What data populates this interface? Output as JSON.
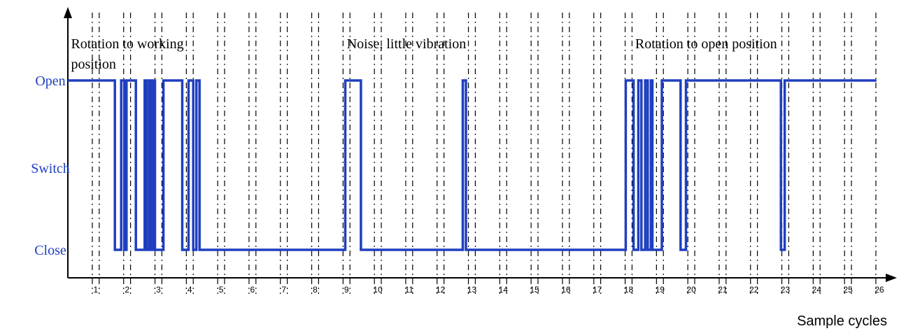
{
  "chart_data": {
    "type": "line",
    "xlabel": "Sample cycles",
    "ylabel": "",
    "y_states": [
      "Close",
      "Switch",
      "Open"
    ],
    "x_ticks": [
      "1",
      "2",
      "3",
      "4",
      "5",
      "6",
      "7",
      "8",
      "9",
      "10",
      "11",
      "12",
      "13",
      "14",
      "15",
      "16",
      "17",
      "18",
      "19",
      "20",
      "21",
      "22",
      "23",
      "24",
      "25",
      "26"
    ],
    "xlim": [
      0,
      26
    ],
    "grid": true,
    "annotations": [
      {
        "lines": [
          "Rotation to working",
          "position"
        ],
        "x": 0.1
      },
      {
        "lines": [
          "Noise, little vibration"
        ],
        "x": 8.9
      },
      {
        "lines": [
          "Rotation to open position"
        ],
        "x": 18.1
      }
    ],
    "series": [
      {
        "points": [
          [
            0,
            "Open"
          ],
          [
            1.5,
            "Open"
          ],
          [
            1.5,
            "Close"
          ],
          [
            1.7,
            "Close"
          ],
          [
            1.7,
            "Open"
          ],
          [
            1.8,
            "Open"
          ],
          [
            1.8,
            "Close"
          ],
          [
            1.87,
            "Close"
          ],
          [
            1.87,
            "Open"
          ],
          [
            2.17,
            "Open"
          ],
          [
            2.17,
            "Close"
          ],
          [
            2.45,
            "Close"
          ],
          [
            2.45,
            "Open"
          ],
          [
            2.52,
            "Open"
          ],
          [
            2.52,
            "Close"
          ],
          [
            2.6,
            "Close"
          ],
          [
            2.6,
            "Open"
          ],
          [
            2.65,
            "Open"
          ],
          [
            2.65,
            "Close"
          ],
          [
            2.72,
            "Close"
          ],
          [
            2.72,
            "Open"
          ],
          [
            2.78,
            "Open"
          ],
          [
            2.78,
            "Close"
          ],
          [
            3.05,
            "Close"
          ],
          [
            3.05,
            "Open"
          ],
          [
            3.65,
            "Open"
          ],
          [
            3.65,
            "Close"
          ],
          [
            3.85,
            "Close"
          ],
          [
            3.85,
            "Open"
          ],
          [
            4.0,
            "Open"
          ],
          [
            4.0,
            "Close"
          ],
          [
            4.1,
            "Close"
          ],
          [
            4.1,
            "Open"
          ],
          [
            4.2,
            "Open"
          ],
          [
            4.2,
            "Close"
          ],
          [
            8.85,
            "Close"
          ],
          [
            8.85,
            "Open"
          ],
          [
            9.35,
            "Open"
          ],
          [
            9.35,
            "Close"
          ],
          [
            12.6,
            "Close"
          ],
          [
            12.6,
            "Open"
          ],
          [
            12.7,
            "Open"
          ],
          [
            12.7,
            "Close"
          ],
          [
            17.8,
            "Close"
          ],
          [
            17.8,
            "Open"
          ],
          [
            18.05,
            "Open"
          ],
          [
            18.05,
            "Close"
          ],
          [
            18.2,
            "Close"
          ],
          [
            18.2,
            "Open"
          ],
          [
            18.3,
            "Open"
          ],
          [
            18.3,
            "Close"
          ],
          [
            18.42,
            "Close"
          ],
          [
            18.42,
            "Open"
          ],
          [
            18.5,
            "Open"
          ],
          [
            18.5,
            "Close"
          ],
          [
            18.6,
            "Close"
          ],
          [
            18.6,
            "Open"
          ],
          [
            18.65,
            "Open"
          ],
          [
            18.65,
            "Close"
          ],
          [
            18.95,
            "Close"
          ],
          [
            18.95,
            "Open"
          ],
          [
            19.55,
            "Open"
          ],
          [
            19.55,
            "Close"
          ],
          [
            19.72,
            "Close"
          ],
          [
            19.72,
            "Open"
          ],
          [
            22.75,
            "Open"
          ],
          [
            22.75,
            "Close"
          ],
          [
            22.87,
            "Close"
          ],
          [
            22.87,
            "Open"
          ],
          [
            25.8,
            "Open"
          ]
        ]
      }
    ]
  },
  "colors": {
    "signal": "#1f3fbf",
    "state_label": "#1f3fbf",
    "axis": "#000000"
  }
}
